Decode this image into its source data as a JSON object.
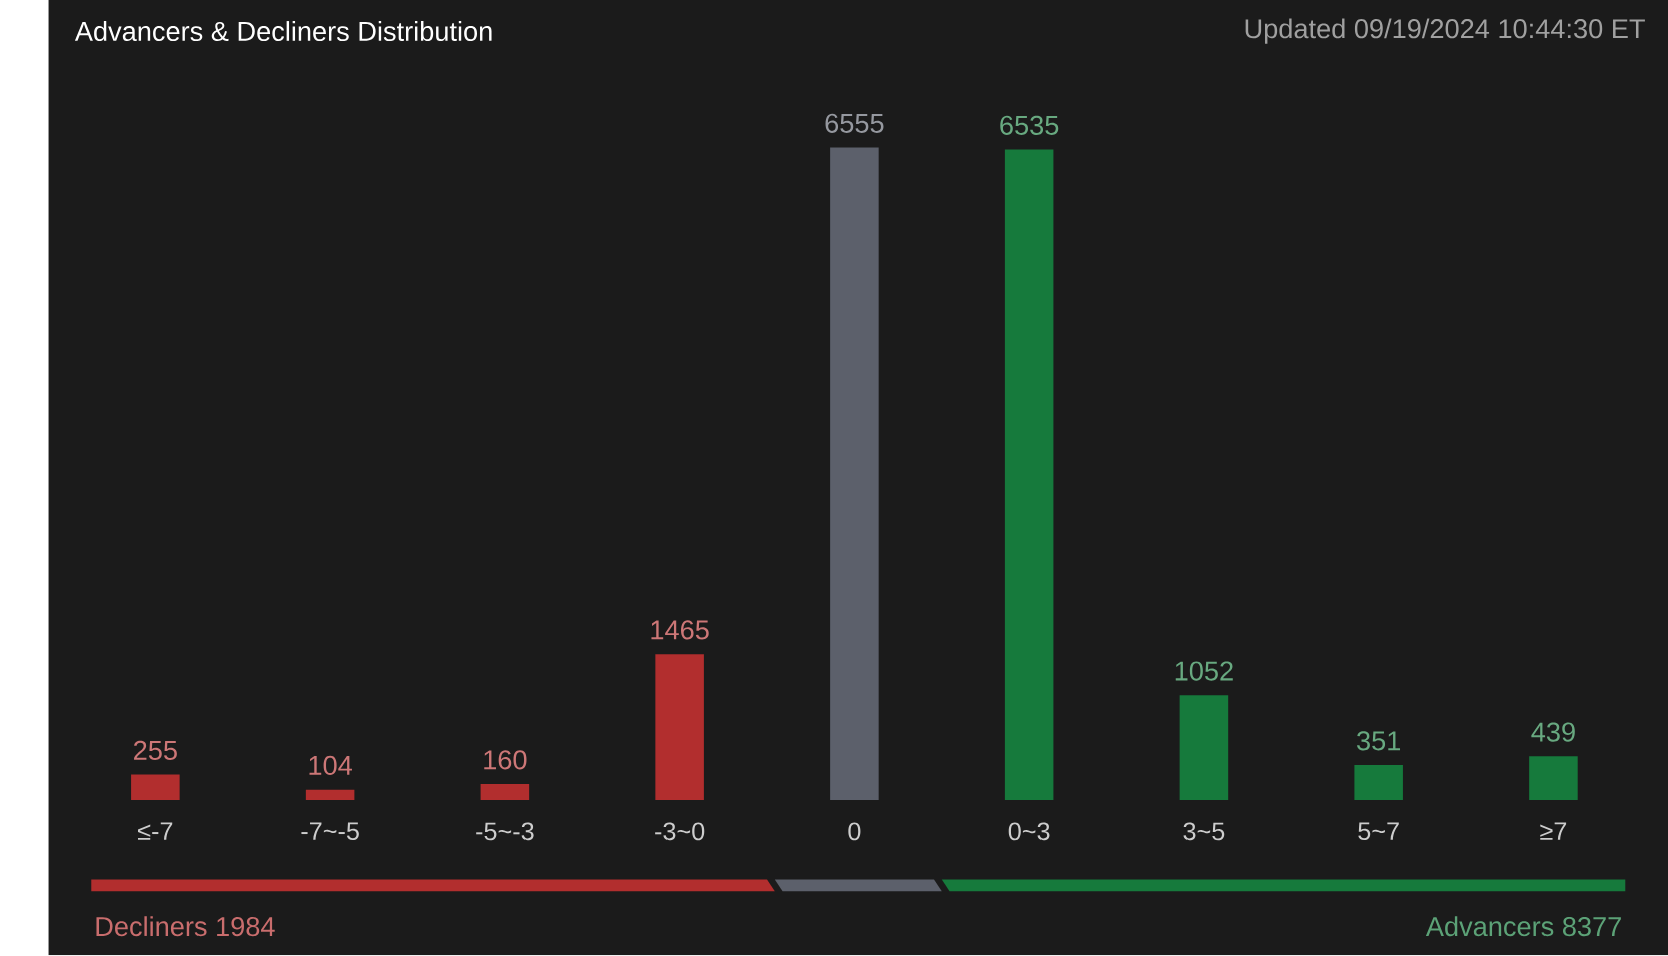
{
  "chart_data": {
    "type": "bar",
    "title": "Advancers & Decliners Distribution",
    "subtitle": "Updated 09/19/2024 10:44:30 ET",
    "categories": [
      "≤-7",
      "-7~-5",
      "-5~-3",
      "-3~0",
      "0",
      "0~3",
      "3~5",
      "5~7",
      "≥7"
    ],
    "values": [
      255,
      104,
      160,
      1465,
      6555,
      6535,
      1052,
      351,
      439
    ],
    "colors": [
      "#b22e2e",
      "#b22e2e",
      "#b22e2e",
      "#b22e2e",
      "#5c606b",
      "#167a3c",
      "#167a3c",
      "#167a3c",
      "#167a3c"
    ],
    "data_labels": true,
    "tick_labels": "x",
    "annotations": [
      "Decliners 1984",
      "Advancers 8377"
    ]
  }
}
